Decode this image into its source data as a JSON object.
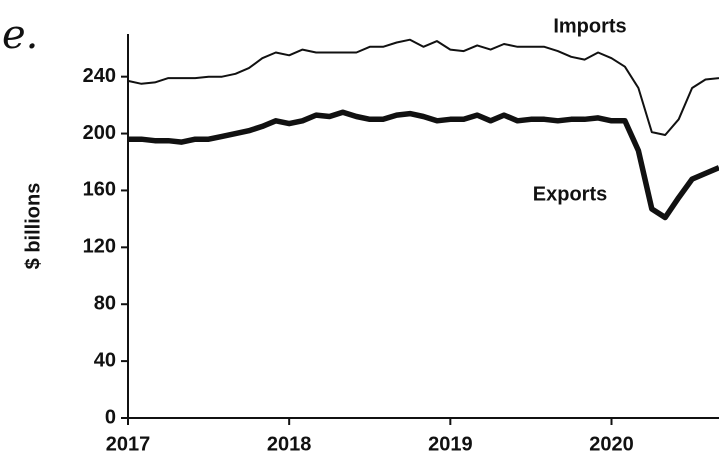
{
  "chart_data": {
    "type": "line",
    "annotation": "e.",
    "ylabel": "$ billions",
    "x": [
      2017,
      2017.083,
      2017.167,
      2017.25,
      2017.333,
      2017.417,
      2017.5,
      2017.583,
      2017.667,
      2017.75,
      2017.833,
      2017.917,
      2018,
      2018.083,
      2018.167,
      2018.25,
      2018.333,
      2018.417,
      2018.5,
      2018.583,
      2018.667,
      2018.75,
      2018.833,
      2018.917,
      2019,
      2019.083,
      2019.167,
      2019.25,
      2019.333,
      2019.417,
      2019.5,
      2019.583,
      2019.667,
      2019.75,
      2019.833,
      2019.917,
      2020,
      2020.083,
      2020.167,
      2020.25,
      2020.333,
      2020.417,
      2020.5,
      2020.583,
      2020.667
    ],
    "series": [
      {
        "name": "Imports",
        "color": "#111111",
        "width": 2,
        "values": [
          237,
          235,
          236,
          239,
          239,
          239,
          240,
          240,
          242,
          246,
          253,
          257,
          255,
          259,
          257,
          257,
          257,
          257,
          261,
          261,
          264,
          266,
          261,
          265,
          259,
          258,
          262,
          259,
          263,
          261,
          261,
          261,
          258,
          254,
          252,
          257,
          253,
          247,
          232,
          201,
          199,
          210,
          232,
          238,
          239
        ]
      },
      {
        "name": "Exports",
        "color": "#111111",
        "width": 5.5,
        "values": [
          196,
          196,
          195,
          195,
          194,
          196,
          196,
          198,
          200,
          202,
          205,
          209,
          207,
          209,
          213,
          212,
          215,
          212,
          210,
          210,
          213,
          214,
          212,
          209,
          210,
          210,
          213,
          209,
          213,
          209,
          210,
          210,
          209,
          210,
          210,
          211,
          209,
          209,
          188,
          147,
          141,
          155,
          168,
          172,
          176
        ]
      }
    ],
    "xlim": [
      2017,
      2020.667
    ],
    "xticks": [
      2017,
      2018,
      2019,
      2020
    ],
    "ylim": [
      0,
      270
    ],
    "yticks": [
      0,
      40,
      80,
      120,
      160,
      200,
      240
    ]
  }
}
